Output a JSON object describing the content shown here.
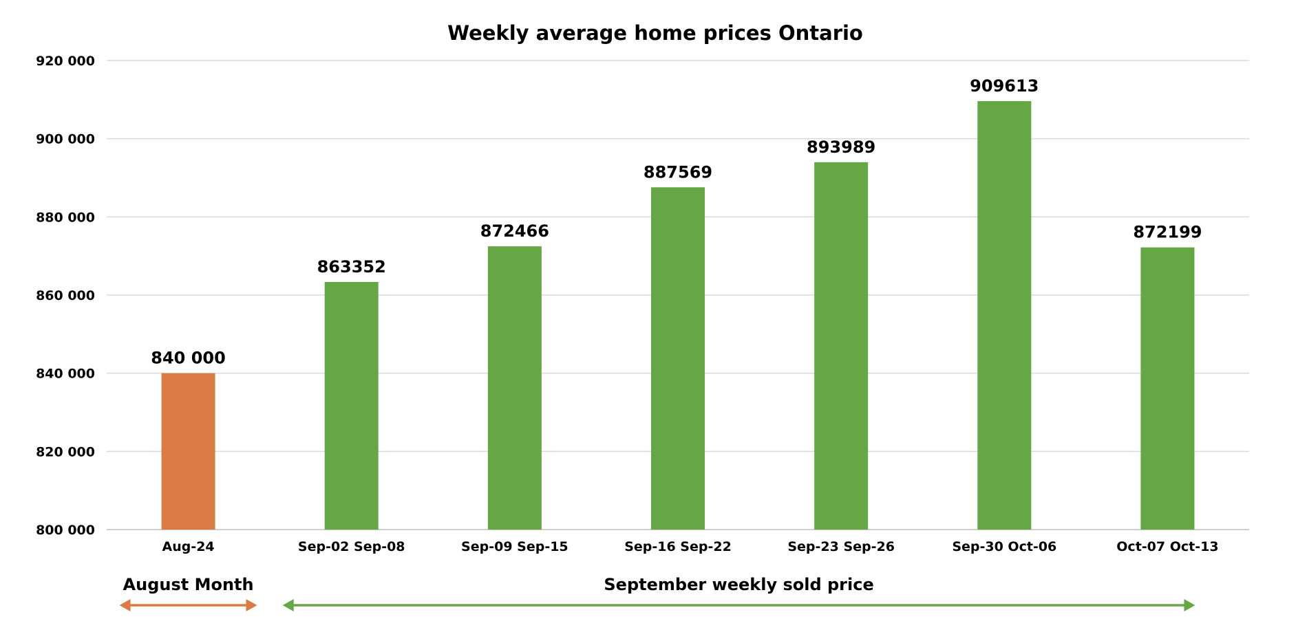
{
  "chart_data": {
    "type": "bar",
    "title": "Weekly average home prices Ontario",
    "xlabel": "",
    "ylabel": "",
    "categories": [
      "Aug-24",
      "Sep-02 Sep-08",
      "Sep-09 Sep-15",
      "Sep-16 Sep-22",
      "Sep-23 Sep-26",
      "Sep-30 Oct-06",
      "Oct-07 Oct-13"
    ],
    "values": [
      840000,
      863352,
      872466,
      887569,
      893989,
      909613,
      872199
    ],
    "data_labels": [
      "840 000",
      "863352",
      "872466",
      "887569",
      "893989",
      "909613",
      "872199"
    ],
    "bar_colors": [
      "#d97b42",
      "#65a744",
      "#65a744",
      "#65a744",
      "#65a744",
      "#65a744",
      "#65a744"
    ],
    "ylim": [
      800000,
      920000
    ],
    "yticks": [
      800000,
      820000,
      840000,
      860000,
      880000,
      900000,
      920000
    ],
    "ytick_labels": [
      "800 000",
      "820 000",
      "840 000",
      "860 000",
      "880 000",
      "900 000",
      "920 000"
    ],
    "grid": true,
    "legend": "none",
    "ranges": [
      {
        "label": "August Month",
        "from_category": 0,
        "to_category": 0,
        "color": "#d97b42"
      },
      {
        "label": "September weekly sold price",
        "from_category": 1,
        "to_category": 6,
        "color": "#65a744"
      }
    ]
  }
}
